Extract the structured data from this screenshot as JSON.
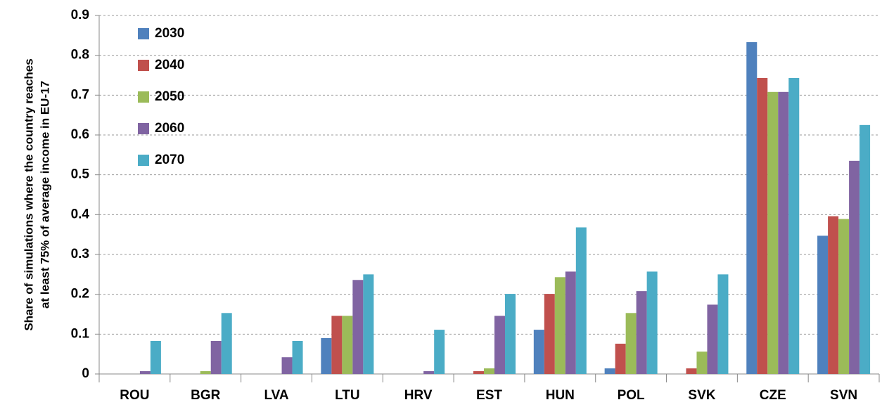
{
  "chart_data": {
    "type": "bar",
    "y_label": [
      "Share of simulations where the country reaches",
      "at least 75% of average income in EU-17"
    ],
    "categories": [
      "ROU",
      "BGR",
      "LVA",
      "LTU",
      "HRV",
      "EST",
      "HUN",
      "POL",
      "SVK",
      "CZE",
      "SVN"
    ],
    "series": [
      {
        "name": "2030",
        "color": "#4f81bd",
        "values": [
          0,
          0,
          0,
          0.09,
          0,
          0,
          0.111,
          0.014,
          0,
          0.833,
          0.347
        ]
      },
      {
        "name": "2040",
        "color": "#c0504d",
        "values": [
          0,
          0,
          0,
          0.146,
          0,
          0.007,
          0.201,
          0.076,
          0.014,
          0.743,
          0.396
        ]
      },
      {
        "name": "2050",
        "color": "#9bbb59",
        "values": [
          0,
          0.007,
          0,
          0.146,
          0,
          0.014,
          0.243,
          0.153,
          0.056,
          0.708,
          0.389
        ]
      },
      {
        "name": "2060",
        "color": "#8064a2",
        "values": [
          0.007,
          0.083,
          0.042,
          0.236,
          0.007,
          0.146,
          0.257,
          0.208,
          0.174,
          0.708,
          0.535
        ]
      },
      {
        "name": "2070",
        "color": "#4bacc6",
        "values": [
          0.083,
          0.153,
          0.083,
          0.25,
          0.111,
          0.201,
          0.368,
          0.257,
          0.25,
          0.743,
          0.625
        ]
      }
    ],
    "ylim": [
      0,
      0.9
    ],
    "yticks": [
      0,
      0.1,
      0.2,
      0.3,
      0.4,
      0.5,
      0.6,
      0.7,
      0.8,
      0.9
    ],
    "grid": true,
    "legend": "top-left"
  }
}
